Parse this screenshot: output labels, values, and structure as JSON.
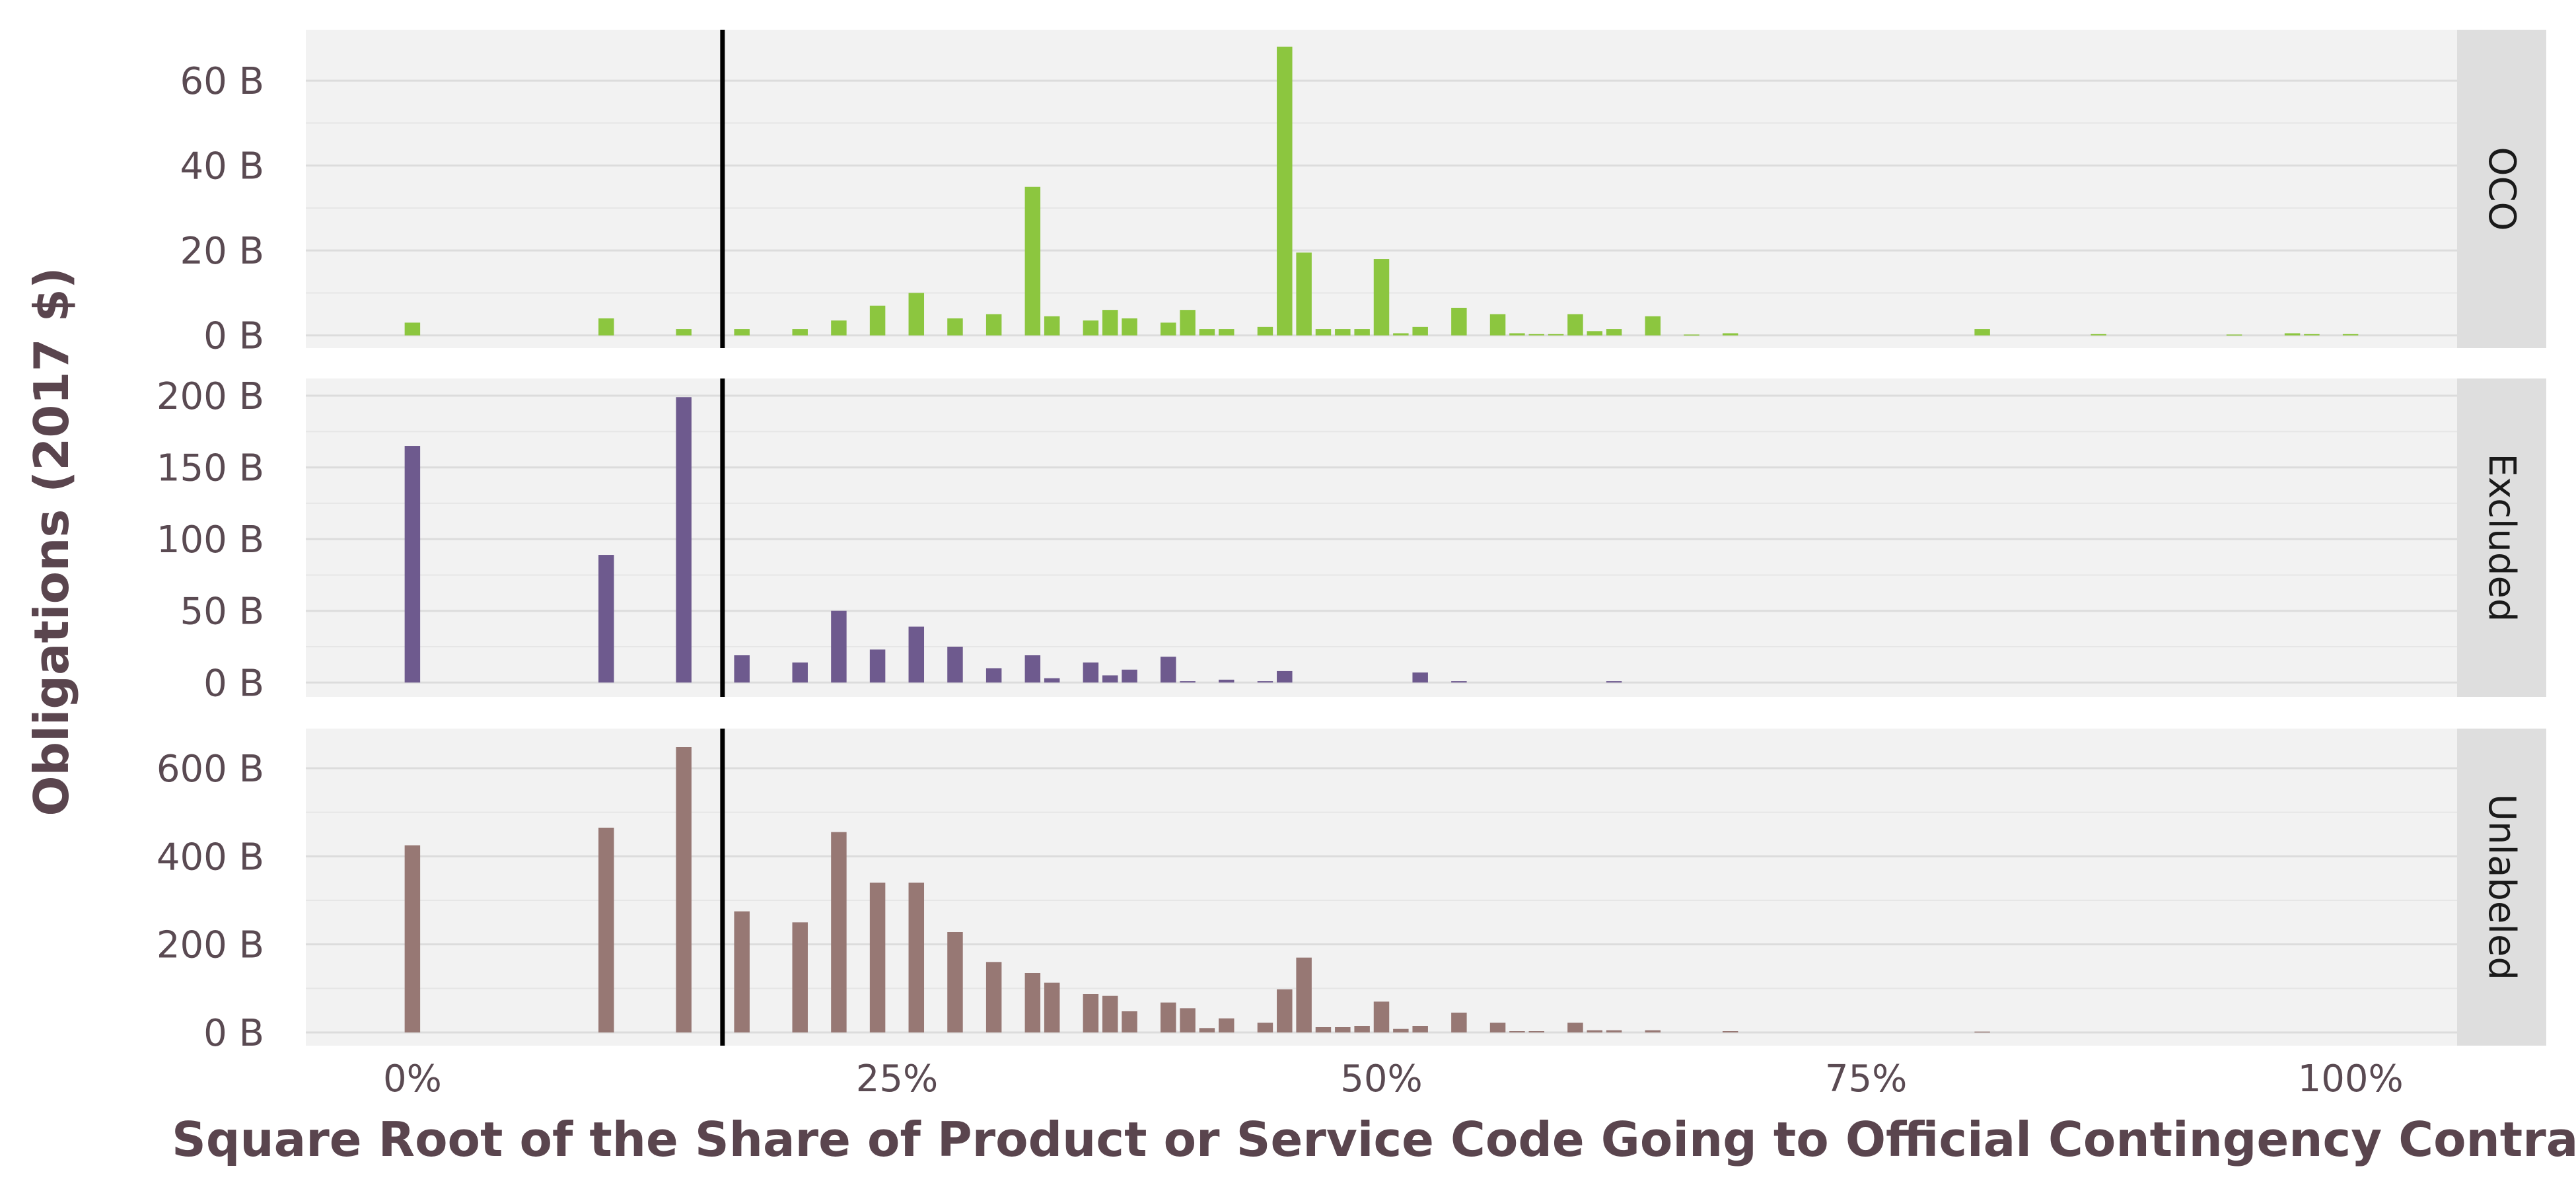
{
  "chart_data": {
    "type": "bar",
    "xlabel": "Square Root of the Share of Product or Service Code Going to Official Contingency Contracts",
    "ylabel": "Obligations (2017 $)",
    "x_ticks": [
      {
        "value": 0,
        "label": "0%"
      },
      {
        "value": 25,
        "label": "25%"
      },
      {
        "value": 50,
        "label": "50%"
      },
      {
        "value": 75,
        "label": "75%"
      },
      {
        "value": 100,
        "label": "100%"
      }
    ],
    "xlim": [
      -5.5,
      105.5
    ],
    "bar_width": 0.8,
    "reference_line_x": 16,
    "grid": true,
    "facets": [
      {
        "label": "OCO",
        "color": "#8cc63f",
        "ylim": [
          -3,
          72
        ],
        "y_ticks": [
          {
            "value": 0,
            "label": "0 B"
          },
          {
            "value": 20,
            "label": "20 B"
          },
          {
            "value": 40,
            "label": "40 B"
          },
          {
            "value": 60,
            "label": "60 B"
          }
        ],
        "x": [
          0,
          10,
          14,
          17,
          20,
          22,
          24,
          26,
          28,
          30,
          32,
          33,
          35,
          36,
          37,
          39,
          40,
          41,
          42,
          44,
          45,
          46,
          47,
          48,
          49,
          50,
          51,
          52,
          54,
          56,
          57,
          58,
          59,
          60,
          61,
          62,
          64,
          66,
          68,
          81,
          87,
          94,
          97,
          98,
          100
        ],
        "values": [
          3,
          4,
          1.5,
          1.5,
          1.5,
          3.5,
          7,
          10,
          4,
          5,
          35,
          4.5,
          3.5,
          6,
          4,
          3,
          6,
          1.5,
          1.5,
          2,
          68,
          19.5,
          1.5,
          1.5,
          1.5,
          18,
          0.5,
          2,
          6.5,
          5,
          0.5,
          0.3,
          0.3,
          5,
          1,
          1.5,
          4.5,
          0.2,
          0.5,
          1.5,
          0.3,
          0.2,
          0.5,
          0.3,
          0.3
        ]
      },
      {
        "label": "Excluded",
        "color": "#6e5a8e",
        "ylim": [
          -10,
          212
        ],
        "y_ticks": [
          {
            "value": 0,
            "label": "0 B"
          },
          {
            "value": 50,
            "label": "50 B"
          },
          {
            "value": 100,
            "label": "100 B"
          },
          {
            "value": 150,
            "label": "150 B"
          },
          {
            "value": 200,
            "label": "200 B"
          }
        ],
        "x": [
          0,
          10,
          14,
          17,
          20,
          22,
          24,
          26,
          28,
          30,
          32,
          33,
          35,
          36,
          37,
          39,
          40,
          42,
          44,
          45,
          52,
          54,
          62
        ],
        "values": [
          165,
          89,
          199,
          19,
          14,
          50,
          23,
          39,
          25,
          10,
          19,
          3,
          14,
          5,
          9,
          18,
          1,
          2,
          1,
          8,
          7,
          1,
          1
        ]
      },
      {
        "label": "Unlabeled",
        "color": "#977874",
        "ylim": [
          -30,
          690
        ],
        "y_ticks": [
          {
            "value": 0,
            "label": "0 B"
          },
          {
            "value": 200,
            "label": "200 B"
          },
          {
            "value": 400,
            "label": "400 B"
          },
          {
            "value": 600,
            "label": "600 B"
          }
        ],
        "x": [
          0,
          10,
          14,
          17,
          20,
          22,
          24,
          26,
          28,
          30,
          32,
          33,
          35,
          36,
          37,
          39,
          40,
          41,
          42,
          44,
          45,
          46,
          47,
          48,
          49,
          50,
          51,
          52,
          54,
          56,
          57,
          58,
          60,
          61,
          62,
          64,
          68,
          81
        ],
        "values": [
          425,
          465,
          648,
          275,
          250,
          455,
          340,
          340,
          228,
          160,
          135,
          113,
          87,
          83,
          48,
          68,
          55,
          10,
          32,
          22,
          98,
          170,
          12,
          12,
          15,
          70,
          8,
          15,
          45,
          22,
          3,
          3,
          22,
          5,
          5,
          5,
          3,
          2
        ]
      }
    ]
  }
}
